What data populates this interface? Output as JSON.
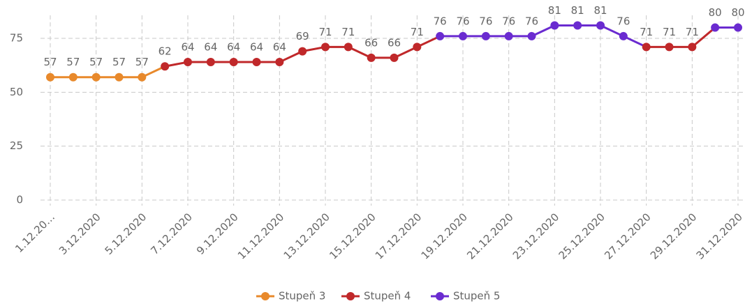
{
  "chart_data": {
    "type": "line",
    "categories": [
      "1.12.20…",
      null,
      "3.12.2020",
      null,
      "5.12.2020",
      null,
      "7.12.2020",
      null,
      "9.12.2020",
      null,
      "11.12.2020",
      null,
      "13.12.2020",
      null,
      "15.12.2020",
      null,
      "17.12.2020",
      null,
      "19.12.2020",
      null,
      "21.12.2020",
      null,
      "23.12.2020",
      null,
      "25.12.2020",
      null,
      "27.12.2020",
      null,
      "29.12.2020",
      null,
      "31.12.2020"
    ],
    "series": [
      {
        "name": "Stupeň 3",
        "color": "#e8892b",
        "values": [
          57,
          57,
          57,
          57,
          57,
          null,
          null,
          null,
          null,
          null,
          null,
          null,
          null,
          null,
          null,
          null,
          null,
          null,
          null,
          null,
          null,
          null,
          null,
          null,
          null,
          null,
          null,
          null,
          null,
          null,
          null
        ]
      },
      {
        "name": "Stupeň 4",
        "color": "#c0282a",
        "values": [
          null,
          null,
          null,
          null,
          null,
          62,
          64,
          64,
          64,
          64,
          64,
          69,
          71,
          71,
          66,
          66,
          71,
          null,
          null,
          null,
          null,
          null,
          null,
          null,
          null,
          null,
          71,
          71,
          71,
          null,
          null
        ]
      },
      {
        "name": "Stupeň 5",
        "color": "#6a2bd0",
        "values": [
          null,
          null,
          null,
          null,
          null,
          null,
          null,
          null,
          null,
          null,
          null,
          null,
          null,
          null,
          null,
          null,
          null,
          76,
          76,
          76,
          76,
          76,
          81,
          81,
          81,
          76,
          null,
          null,
          null,
          80,
          80
        ]
      }
    ],
    "ylim": [
      0,
      86
    ],
    "yticks": [
      0,
      25,
      50,
      75
    ],
    "grid": true,
    "legend": "bottom"
  }
}
